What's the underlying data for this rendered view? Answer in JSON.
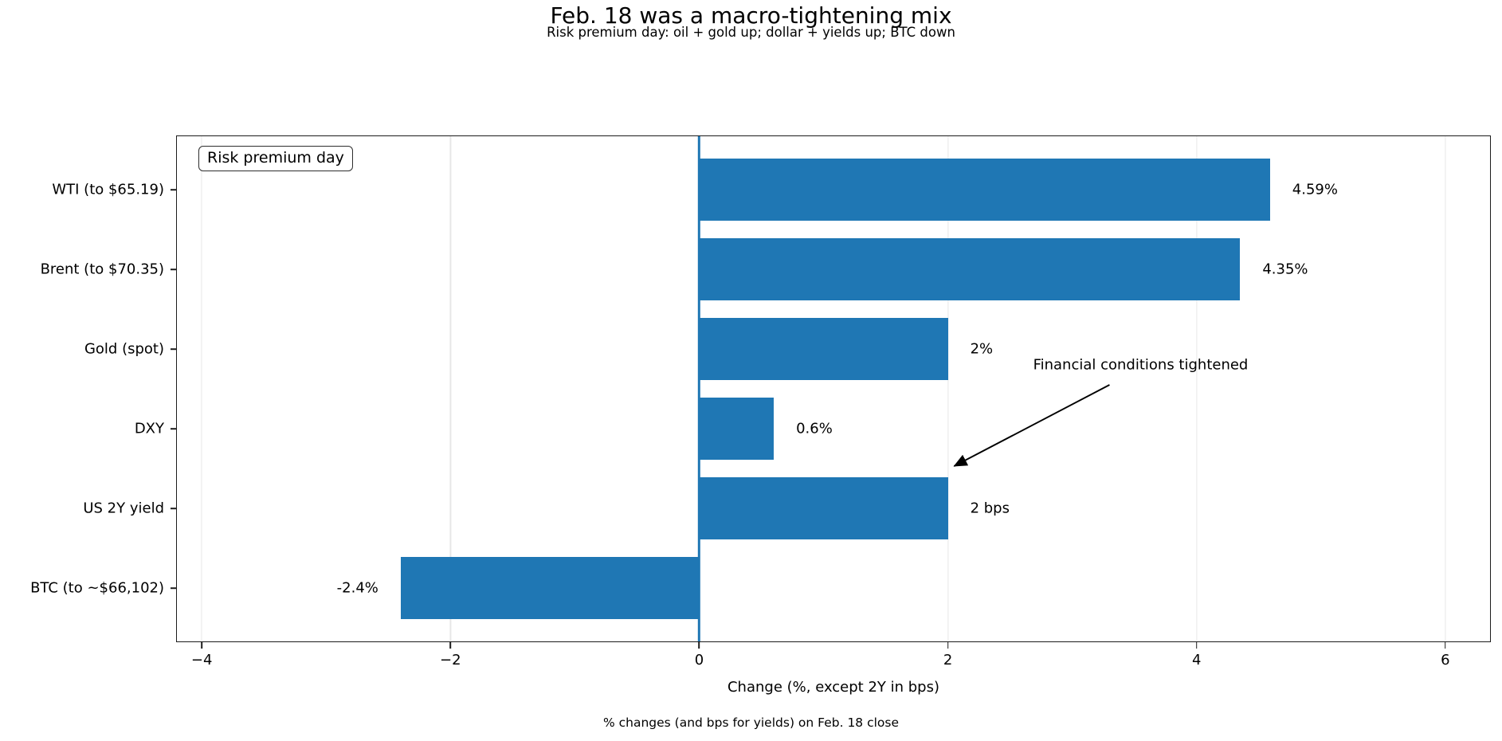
{
  "header": {
    "title": "Feb. 18 was a macro-tightening mix",
    "subtitle": "Risk premium day: oil + gold up; dollar + yields up; BTC down"
  },
  "legend": {
    "label": "Risk premium day"
  },
  "annotation": {
    "text": "Financial conditions tightened"
  },
  "footer": {
    "caption": "% changes (and bps for yields) on Feb. 18 close"
  },
  "colors": {
    "bar": "#1f77b4",
    "zero_line": "#1f77b4",
    "grid": "#e7e7e7",
    "spine": "#1c1c1c",
    "text": "#000000"
  },
  "chart_data": {
    "type": "bar",
    "orientation": "horizontal",
    "title": "Feb. 18 was a macro-tightening mix",
    "subtitle": "Risk premium day: oil + gold up; dollar + yields up; BTC down",
    "caption": "% changes (and bps for yields) on Feb. 18 close",
    "categories": [
      "WTI (to $65.19)",
      "Brent (to $70.35)",
      "Gold (spot)",
      "DXY",
      "US 2Y yield",
      "BTC (to ~$66,102)"
    ],
    "values": [
      4.59,
      4.35,
      2.0,
      0.6,
      2.0,
      -2.4
    ],
    "value_labels": [
      "4.59%",
      "4.35%",
      "2%",
      "0.6%",
      "2 bps",
      "-2.4%"
    ],
    "units": [
      "%",
      "%",
      "%",
      "%",
      "bps",
      "%"
    ],
    "xlabel": "Change (%, except 2Y in bps)",
    "x_ticks": [
      -4,
      -2,
      0,
      2,
      4,
      6
    ],
    "x_tick_labels": [
      "−4",
      "−2",
      "0",
      "2",
      "4",
      "6"
    ],
    "xlim": [
      -4.2,
      6.36
    ],
    "grid": true,
    "zero_line": true,
    "legend_label": "Risk premium day",
    "legend_position": "upper-left",
    "annotation": {
      "text": "Financial conditions tightened",
      "text_x": 3.55,
      "text_row": 2.2,
      "tail_x": 3.3,
      "tail_row": 2.45,
      "tip_x": 2.05,
      "tip_row": 3.47
    }
  }
}
